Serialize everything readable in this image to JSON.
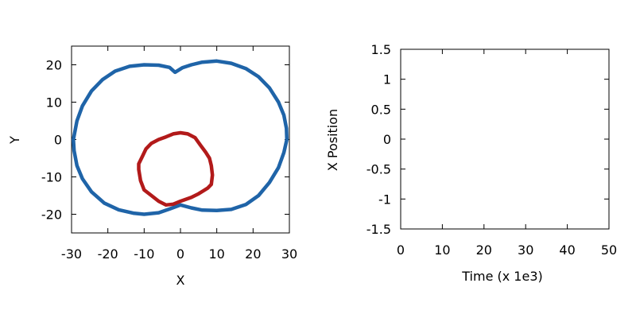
{
  "chart_data": [
    {
      "type": "scatter",
      "xlabel": "X",
      "ylabel": "Y",
      "xlim": [
        -30,
        30
      ],
      "ylim": [
        -25,
        25
      ],
      "xticks": [
        -30,
        -20,
        -10,
        0,
        10,
        20,
        30
      ],
      "yticks": [
        -20,
        -10,
        0,
        10,
        20
      ],
      "grid": false,
      "series": [
        {
          "color": "#1f64a8",
          "points": [
            [
              -1.5,
              18
            ],
            [
              -3,
              19.3
            ],
            [
              -6,
              19.9
            ],
            [
              -10,
              20
            ],
            [
              -14,
              19.6
            ],
            [
              -18,
              18.3
            ],
            [
              -21.5,
              16
            ],
            [
              -24.5,
              13
            ],
            [
              -27,
              9
            ],
            [
              -28.5,
              5
            ],
            [
              -29.3,
              1
            ],
            [
              -29.5,
              0
            ],
            [
              -29.3,
              -3
            ],
            [
              -28.5,
              -7
            ],
            [
              -27,
              -10.5
            ],
            [
              -24.5,
              -14
            ],
            [
              -21,
              -17
            ],
            [
              -17,
              -18.8
            ],
            [
              -13,
              -19.7
            ],
            [
              -10,
              -20
            ],
            [
              -6,
              -19.6
            ],
            [
              -3,
              -18.6
            ],
            [
              0,
              -17.5
            ],
            [
              3,
              -18.3
            ],
            [
              6,
              -18.9
            ],
            [
              10,
              -19
            ],
            [
              14,
              -18.7
            ],
            [
              18,
              -17.4
            ],
            [
              21.5,
              -15
            ],
            [
              24.5,
              -11.5
            ],
            [
              27,
              -7.5
            ],
            [
              28.5,
              -3.5
            ],
            [
              29.3,
              0
            ],
            [
              29.2,
              3
            ],
            [
              28.5,
              6.5
            ],
            [
              27,
              10
            ],
            [
              24.5,
              13.8
            ],
            [
              21.5,
              16.8
            ],
            [
              18,
              19
            ],
            [
              14,
              20.4
            ],
            [
              10,
              21
            ],
            [
              6,
              20.7
            ],
            [
              3,
              20
            ],
            [
              0.5,
              19.2
            ],
            [
              -1.5,
              18
            ]
          ]
        },
        {
          "color": "#b21a1a",
          "points": [
            [
              0,
              1.8
            ],
            [
              2,
              1.5
            ],
            [
              4,
              0.5
            ],
            [
              5.5,
              -1.5
            ],
            [
              7,
              -3.5
            ],
            [
              8,
              -5
            ],
            [
              8.5,
              -7
            ],
            [
              8.8,
              -9.5
            ],
            [
              8.5,
              -12
            ],
            [
              7.5,
              -13
            ],
            [
              5,
              -14.5
            ],
            [
              3,
              -15.5
            ],
            [
              0,
              -16.5
            ],
            [
              -2,
              -17.3
            ],
            [
              -4,
              -17.5
            ],
            [
              -6,
              -16.5
            ],
            [
              -8,
              -15
            ],
            [
              -10,
              -13.5
            ],
            [
              -11,
              -11
            ],
            [
              -11.5,
              -8
            ],
            [
              -11.5,
              -6.5
            ],
            [
              -10.5,
              -4.5
            ],
            [
              -9.5,
              -2.5
            ],
            [
              -8,
              -1
            ],
            [
              -6,
              0
            ],
            [
              -4,
              0.7
            ],
            [
              -2,
              1.5
            ],
            [
              0,
              1.8
            ]
          ]
        }
      ]
    },
    {
      "type": "line",
      "xlabel": "Time (x 1e3)",
      "ylabel": "X Position",
      "xlim": [
        0,
        50
      ],
      "ylim": [
        -1.5,
        1.5
      ],
      "xticks": [
        0,
        10,
        20,
        30,
        40,
        50
      ],
      "yticks": [
        "-1.5",
        "-1",
        "-0.5",
        "0",
        "0.5",
        "1",
        "1.5"
      ],
      "grid": false,
      "series": []
    }
  ]
}
